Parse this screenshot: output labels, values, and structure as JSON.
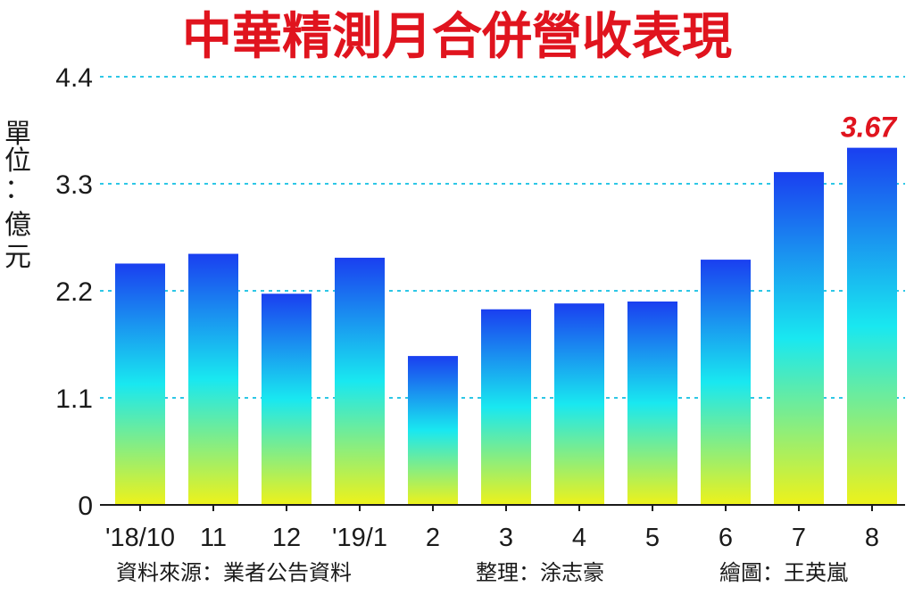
{
  "chart_data": {
    "type": "bar",
    "title": "中華精測月合併營收表現",
    "ylabel": "單位：億元",
    "xlabel": "",
    "ylim": [
      0,
      4.4
    ],
    "yticks": [
      "0",
      "1.1",
      "2.2",
      "3.3",
      "4.4"
    ],
    "ytick_values": [
      0,
      1.1,
      2.2,
      3.3,
      4.4
    ],
    "categories": [
      "'18/10",
      "11",
      "12",
      "'19/1",
      "2",
      "3",
      "4",
      "5",
      "6",
      "7",
      "8"
    ],
    "values": [
      2.48,
      2.58,
      2.17,
      2.54,
      1.53,
      2.01,
      2.07,
      2.09,
      2.52,
      3.42,
      3.67
    ],
    "annotations": [
      {
        "category": "8",
        "text": "3.67"
      }
    ],
    "grid": true,
    "legend": "none",
    "colors": {
      "bar_top": "#1a3ff0",
      "bar_mid": "#19e8f0",
      "bar_bottom": "#eef21a",
      "title": "#e0141e",
      "gridline": "#2ec7e6",
      "annotation": "#e0141e"
    }
  },
  "footer": {
    "source": "資料來源：業者公告資料",
    "editor": "整理：涂志豪",
    "illustrator": "繪圖：王英嵐"
  }
}
